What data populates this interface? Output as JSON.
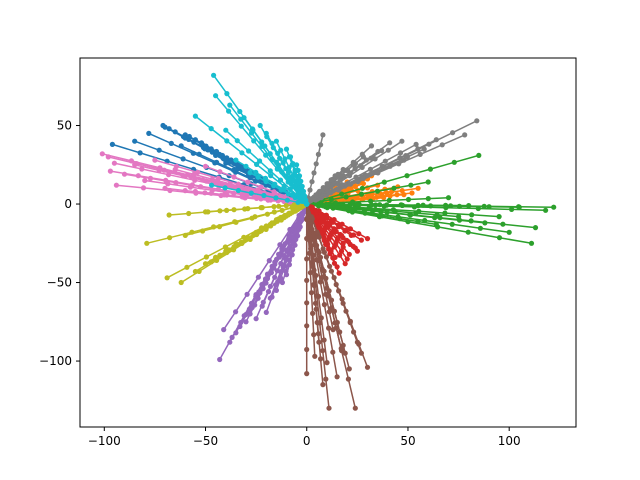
{
  "chart_data": {
    "type": "line",
    "title": "",
    "xlabel": "",
    "ylabel": "",
    "xlim": [
      -112,
      133
    ],
    "ylim": [
      -142,
      93
    ],
    "x_ticks": [
      -100,
      -50,
      0,
      50,
      100
    ],
    "y_ticks": [
      50,
      0,
      -50,
      -100
    ],
    "x_tick_labels": [
      "−100",
      "−50",
      "0",
      "50",
      "100"
    ],
    "y_tick_labels": [
      "50",
      "0",
      "−50",
      "−100"
    ],
    "grid": false,
    "marker": "circle",
    "series": [
      {
        "color": "#1f77b4",
        "endpoints": [
          [
            -71,
            50
          ],
          [
            -68,
            48
          ],
          [
            -65,
            46
          ],
          [
            -78,
            45
          ],
          [
            -96,
            38
          ],
          [
            -60,
            44
          ],
          [
            -55,
            41
          ],
          [
            -50,
            36
          ],
          [
            -62,
            37
          ],
          [
            -45,
            31
          ],
          [
            -40,
            26
          ],
          [
            -70,
            49
          ],
          [
            -58,
            43
          ],
          [
            -85,
            40
          ],
          [
            -52,
            39
          ]
        ]
      },
      {
        "color": "#ff7f0e",
        "endpoints": [
          [
            28,
            13
          ],
          [
            32,
            18
          ],
          [
            42,
            8
          ],
          [
            55,
            10
          ],
          [
            25,
            5
          ],
          [
            18,
            3
          ],
          [
            35,
            12
          ],
          [
            48,
            6
          ],
          [
            30,
            16
          ],
          [
            22,
            9
          ],
          [
            38,
            4
          ],
          [
            45,
            11
          ],
          [
            20,
            14
          ],
          [
            52,
            7
          ],
          [
            15,
            6
          ]
        ]
      },
      {
        "color": "#2ca02c",
        "endpoints": [
          [
            122,
            -2
          ],
          [
            118,
            -4
          ],
          [
            113,
            -15
          ],
          [
            111,
            -25
          ],
          [
            100,
            -18
          ],
          [
            85,
            31
          ],
          [
            80,
            -1
          ],
          [
            75,
            -8
          ],
          [
            64,
            -13
          ],
          [
            55,
            -1
          ],
          [
            60,
            14
          ],
          [
            95,
            -8
          ],
          [
            105,
            -2
          ],
          [
            88,
            -12
          ],
          [
            70,
            4
          ]
        ]
      },
      {
        "color": "#d62728",
        "endpoints": [
          [
            27,
            -23
          ],
          [
            23,
            -27
          ],
          [
            21,
            -32
          ],
          [
            19,
            -38
          ],
          [
            30,
            -22
          ],
          [
            16,
            -44
          ],
          [
            25,
            -30
          ],
          [
            20,
            -35
          ],
          [
            15,
            -40
          ],
          [
            18,
            -25
          ],
          [
            12,
            -30
          ],
          [
            24,
            -28
          ],
          [
            14,
            -34
          ],
          [
            22,
            -20
          ],
          [
            10,
            -26
          ]
        ]
      },
      {
        "color": "#9467bd",
        "endpoints": [
          [
            -43,
            -99
          ],
          [
            -41,
            -80
          ],
          [
            -38,
            -88
          ],
          [
            -33,
            -78
          ],
          [
            -30,
            -75
          ],
          [
            -28,
            -70
          ],
          [
            -25,
            -73
          ],
          [
            -20,
            -69
          ],
          [
            -18,
            -60
          ],
          [
            -15,
            -55
          ],
          [
            -22,
            -65
          ],
          [
            -35,
            -82
          ],
          [
            -27,
            -66
          ],
          [
            -12,
            -50
          ],
          [
            -10,
            -45
          ]
        ]
      },
      {
        "color": "#8c564b",
        "endpoints": [
          [
            0,
            -108
          ],
          [
            4,
            -97
          ],
          [
            8,
            -115
          ],
          [
            11,
            -130
          ],
          [
            15,
            -110
          ],
          [
            19,
            -95
          ],
          [
            24,
            -130
          ],
          [
            27,
            -95
          ],
          [
            30,
            -104
          ],
          [
            10,
            -101
          ],
          [
            17,
            -92
          ],
          [
            21,
            -105
          ],
          [
            6,
            -88
          ],
          [
            13,
            -80
          ],
          [
            25,
            -88
          ]
        ]
      },
      {
        "color": "#e377c2",
        "endpoints": [
          [
            -101,
            32
          ],
          [
            -98,
            30
          ],
          [
            -97,
            21
          ],
          [
            -95,
            26
          ],
          [
            -94,
            12
          ],
          [
            -90,
            19
          ],
          [
            -85,
            25
          ],
          [
            -80,
            15
          ],
          [
            -75,
            28
          ],
          [
            -70,
            10
          ],
          [
            -65,
            22
          ],
          [
            -60,
            18
          ],
          [
            -55,
            8
          ],
          [
            -50,
            24
          ],
          [
            -45,
            14
          ]
        ]
      },
      {
        "color": "#7f7f7f",
        "endpoints": [
          [
            84,
            53
          ],
          [
            78,
            44
          ],
          [
            64,
            41
          ],
          [
            58,
            35
          ],
          [
            54,
            38
          ],
          [
            48,
            28
          ],
          [
            47,
            40
          ],
          [
            41,
            39
          ],
          [
            37,
            34
          ],
          [
            32,
            37
          ],
          [
            28,
            30
          ],
          [
            23,
            25
          ],
          [
            18,
            22
          ],
          [
            14,
            18
          ],
          [
            8,
            44
          ]
        ]
      },
      {
        "color": "#bcbd22",
        "endpoints": [
          [
            -69,
            -47
          ],
          [
            -62,
            -50
          ],
          [
            -79,
            -25
          ],
          [
            -60,
            -20
          ],
          [
            -50,
            -38
          ],
          [
            -45,
            -34
          ],
          [
            -40,
            -30
          ],
          [
            -35,
            -26
          ],
          [
            -30,
            -22
          ],
          [
            -25,
            -18
          ],
          [
            -20,
            -14
          ],
          [
            -15,
            -10
          ],
          [
            -68,
            -7
          ],
          [
            -50,
            -5
          ],
          [
            -55,
            -43
          ]
        ]
      },
      {
        "color": "#17becf",
        "endpoints": [
          [
            -46,
            82
          ],
          [
            -45,
            69
          ],
          [
            -38,
            63
          ],
          [
            -31,
            55
          ],
          [
            -23,
            50
          ],
          [
            -55,
            56
          ],
          [
            -20,
            45
          ],
          [
            -15,
            40
          ],
          [
            -10,
            35
          ],
          [
            -8,
            30
          ],
          [
            -5,
            25
          ],
          [
            -47,
            12
          ],
          [
            -28,
            20
          ],
          [
            -35,
            28
          ],
          [
            -40,
            47
          ]
        ]
      }
    ]
  }
}
